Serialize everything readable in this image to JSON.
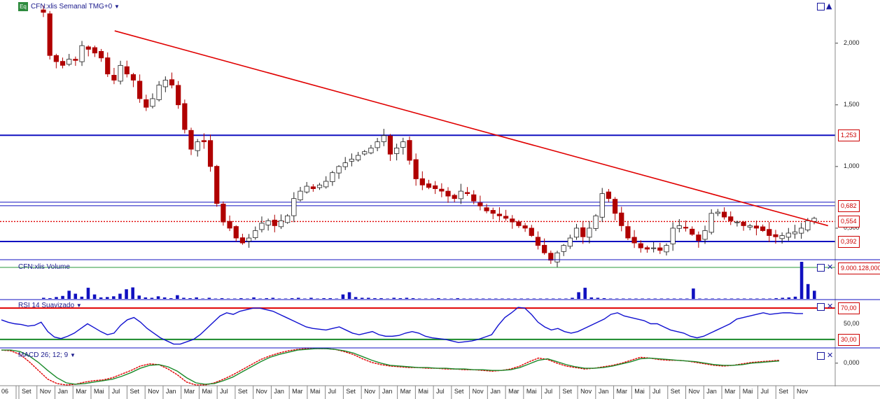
{
  "header": {
    "badge": "Eq",
    "title": "CFN:xlis Semanal TMG+0",
    "volume_title": "CFN:xlis Volume",
    "rsi_title": "RSI 14 Suavizado",
    "macd_title": "MACD 26; 12; 9"
  },
  "colors": {
    "up_candle": "#222222",
    "down_candle": "#b00000",
    "trendline": "#e00000",
    "support": "#1010c0",
    "rsi_line": "#1010d0",
    "macd_green": "#1a8a2a",
    "macd_red": "#e00000",
    "volume": "#1010c0"
  },
  "chart_data": [
    {
      "type": "candlestick",
      "title": "CFN:xlis Semanal TMG+0",
      "y_ticks": [
        "2,000",
        "1,500",
        "1,000",
        "0,500"
      ],
      "ylim": [
        0.25,
        2.35
      ],
      "levels": [
        {
          "label": "1,253",
          "value": 1.253,
          "style": "solid-blue"
        },
        {
          "label": "0,682",
          "value": 0.682,
          "style": "thin-blue"
        },
        {
          "label": "0,554",
          "value": 0.554,
          "style": "dotted-red"
        },
        {
          "label": "0,392",
          "value": 0.392,
          "style": "solid-blue"
        }
      ],
      "trendline": [
        [
          0.09,
          2.1
        ],
        [
          0.945,
          0.52
        ]
      ],
      "series": [
        {
          "values": [
            2.25,
            1.9,
            1.85,
            1.82,
            1.87,
            1.86,
            1.98,
            1.95,
            1.92,
            1.88,
            1.75,
            1.7,
            1.82,
            1.75,
            1.7,
            1.55,
            1.48,
            1.55,
            1.66,
            1.7,
            1.66,
            1.5,
            1.3,
            1.14,
            1.2,
            1.2,
            1.0,
            0.7,
            0.55,
            0.5,
            0.42,
            0.38,
            0.42,
            0.48,
            0.54,
            0.56,
            0.52,
            0.56,
            0.6,
            0.74,
            0.8,
            0.84,
            0.82,
            0.85,
            0.88,
            0.95,
            1.0,
            1.03,
            1.06,
            1.09,
            1.12,
            1.15,
            1.2,
            1.25,
            1.1,
            1.15,
            1.2,
            1.05,
            0.9,
            0.85,
            0.83,
            0.82,
            0.8,
            0.76,
            0.74,
            0.8,
            0.78,
            0.72,
            0.68,
            0.64,
            0.62,
            0.6,
            0.58,
            0.55,
            0.52,
            0.5,
            0.44,
            0.36,
            0.3,
            0.24,
            0.3,
            0.36,
            0.42,
            0.5,
            0.43,
            0.5,
            0.6,
            0.78,
            0.74,
            0.62,
            0.52,
            0.42,
            0.38,
            0.34,
            0.33,
            0.34,
            0.32,
            0.36,
            0.5,
            0.52,
            0.5,
            0.45,
            0.4,
            0.48,
            0.62,
            0.63,
            0.59,
            0.56,
            0.55,
            0.52,
            0.52,
            0.5,
            0.48,
            0.44,
            0.43,
            0.44,
            0.46,
            0.47,
            0.5,
            0.56,
            0.58
          ]
        }
      ]
    },
    {
      "type": "bar",
      "title": "CFN:xlis Volume",
      "y_ticks": [
        "9.000.128,000"
      ],
      "values": [
        3,
        2,
        5,
        8,
        22,
        14,
        6,
        30,
        12,
        4,
        5,
        7,
        14,
        26,
        31,
        9,
        4,
        3,
        7,
        4,
        2,
        10,
        3,
        2,
        4,
        1,
        3,
        1,
        2,
        1,
        1,
        2,
        1,
        4,
        1,
        2,
        3,
        1,
        1,
        2,
        3,
        1,
        3,
        1,
        2,
        2,
        1,
        12,
        18,
        5,
        3,
        3,
        2,
        2,
        1,
        3,
        2,
        3,
        2,
        1,
        1,
        1,
        2,
        1,
        1,
        2,
        1,
        1,
        1,
        1,
        1,
        1,
        1,
        1,
        1,
        1,
        1,
        1,
        1,
        1,
        1,
        1,
        1,
        3,
        18,
        30,
        4,
        3,
        2,
        1,
        1,
        1,
        1,
        1,
        1,
        1,
        1,
        1,
        1,
        1,
        1,
        1,
        28,
        1,
        1,
        1,
        1,
        1,
        1,
        1,
        1,
        1,
        1,
        1,
        1,
        2,
        3,
        4,
        6,
        100,
        40,
        22
      ]
    },
    {
      "type": "line",
      "title": "RSI 14 Suavizado",
      "y_ticks": [
        "70,00",
        "50,00",
        "30,00"
      ],
      "ylim": [
        20,
        80
      ],
      "levels": [
        70,
        30
      ],
      "series": [
        {
          "name": "RSI",
          "values": [
            55,
            52,
            50,
            49,
            47,
            48,
            52,
            40,
            33,
            31,
            34,
            38,
            44,
            50,
            45,
            40,
            36,
            38,
            48,
            55,
            58,
            52,
            44,
            38,
            32,
            28,
            24,
            24,
            27,
            30,
            36,
            44,
            52,
            60,
            64,
            62,
            66,
            68,
            70,
            70,
            68,
            66,
            62,
            58,
            54,
            50,
            46,
            44,
            43,
            42,
            44,
            46,
            42,
            38,
            36,
            38,
            40,
            36,
            34,
            34,
            35,
            38,
            40,
            38,
            34,
            32,
            31,
            30,
            28,
            26,
            27,
            28,
            30,
            33,
            36,
            48,
            58,
            64,
            71,
            70,
            62,
            52,
            46,
            42,
            44,
            40,
            38,
            40,
            44,
            48,
            52,
            56,
            62,
            64,
            60,
            58,
            56,
            54,
            50,
            50,
            46,
            42,
            40,
            38,
            34,
            32,
            34,
            38,
            42,
            46,
            50,
            56,
            58,
            60,
            62,
            64,
            62,
            63,
            64,
            64,
            63,
            63
          ]
        }
      ]
    },
    {
      "type": "line",
      "title": "MACD 26; 12; 9",
      "y_ticks": [
        "0,000"
      ],
      "ylim": [
        -0.3,
        0.2
      ],
      "series": [
        {
          "name": "MACD",
          "values": [
            0.18,
            0.17,
            0.12,
            0.02,
            -0.1,
            -0.22,
            -0.28,
            -0.3,
            -0.29,
            -0.26,
            -0.24,
            -0.23,
            -0.2,
            -0.15,
            -0.1,
            -0.04,
            -0.01,
            -0.02,
            -0.08,
            -0.16,
            -0.26,
            -0.3,
            -0.3,
            -0.27,
            -0.22,
            -0.16,
            -0.09,
            -0.02,
            0.05,
            0.1,
            0.14,
            0.17,
            0.19,
            0.2,
            0.2,
            0.2,
            0.19,
            0.16,
            0.12,
            0.06,
            0.01,
            -0.02,
            -0.04,
            -0.05,
            -0.06,
            -0.06,
            -0.07,
            -0.07,
            -0.08,
            -0.08,
            -0.09,
            -0.09,
            -0.1,
            -0.11,
            -0.1,
            -0.08,
            -0.04,
            0.02,
            0.07,
            0.05,
            0.0,
            -0.04,
            -0.06,
            -0.08,
            -0.07,
            -0.05,
            -0.03,
            0.0,
            0.04,
            0.08,
            0.07,
            0.05,
            0.04,
            0.04,
            0.03,
            0.01,
            -0.01,
            -0.03,
            -0.04,
            -0.03,
            -0.01,
            0.01,
            0.02,
            0.03,
            0.04
          ]
        },
        {
          "name": "Signal",
          "values": [
            0.18,
            0.18,
            0.16,
            0.1,
            0.01,
            -0.1,
            -0.2,
            -0.27,
            -0.29,
            -0.28,
            -0.26,
            -0.24,
            -0.22,
            -0.18,
            -0.13,
            -0.07,
            -0.03,
            -0.02,
            -0.05,
            -0.11,
            -0.2,
            -0.27,
            -0.29,
            -0.28,
            -0.24,
            -0.19,
            -0.12,
            -0.05,
            0.02,
            0.08,
            0.12,
            0.15,
            0.18,
            0.19,
            0.2,
            0.2,
            0.19,
            0.17,
            0.14,
            0.09,
            0.04,
            0.0,
            -0.03,
            -0.04,
            -0.05,
            -0.06,
            -0.06,
            -0.07,
            -0.07,
            -0.08,
            -0.08,
            -0.09,
            -0.09,
            -0.1,
            -0.1,
            -0.09,
            -0.06,
            -0.01,
            0.04,
            0.06,
            0.02,
            -0.02,
            -0.05,
            -0.07,
            -0.07,
            -0.06,
            -0.04,
            -0.01,
            0.02,
            0.06,
            0.07,
            0.06,
            0.05,
            0.04,
            0.03,
            0.02,
            0.0,
            -0.02,
            -0.03,
            -0.03,
            -0.02,
            0.0,
            0.01,
            0.02,
            0.03
          ]
        }
      ]
    }
  ],
  "x_axis": {
    "start_label": "06",
    "months": [
      "Set",
      "Nov",
      "Jan",
      "Mar",
      "Mai",
      "Jul",
      "Set",
      "Nov",
      "Jan",
      "Mar",
      "Mai",
      "Jul",
      "Set",
      "Nov",
      "Jan",
      "Mar",
      "Mai",
      "Jul",
      "Set",
      "Nov",
      "Jan",
      "Mar",
      "Mai",
      "Jul",
      "Set",
      "Nov",
      "Jan",
      "Mar",
      "Mai",
      "Jul",
      "Set",
      "Nov",
      "Jan",
      "Mar",
      "Mai",
      "Jul",
      "Set",
      "Nov",
      "Jan",
      "Mar",
      "Mai",
      "Jul",
      "Set",
      "Nov"
    ]
  }
}
